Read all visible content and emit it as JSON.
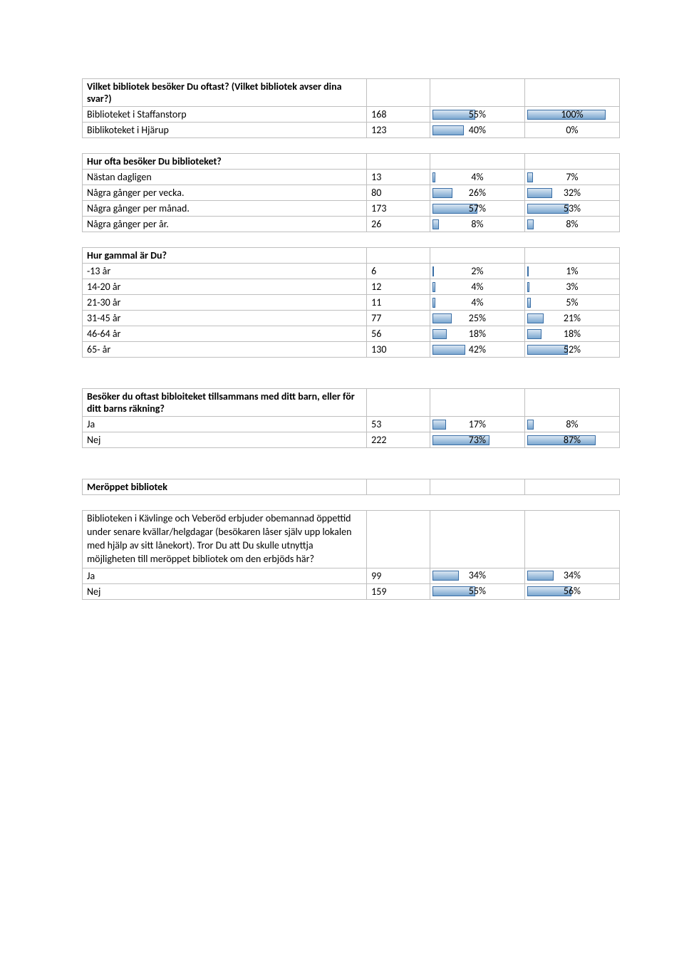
{
  "bar_color_start": "#d9e6f2",
  "bar_color_end": "#7ba7d0",
  "bar_border": "#3a6ea5",
  "grid_color": "#bfbfbf",
  "sections": [
    {
      "header": "Vilket bibliotek besöker Du oftast? (Vilket bibliotek avser dina svar?)",
      "rows": [
        {
          "label": "Biblioteket i Staffanstorp",
          "count": "168",
          "pct1": 55,
          "pct1_txt": "55%",
          "pct2": 100,
          "pct2_txt": "100%"
        },
        {
          "label": "Biblikoteket i Hjärup",
          "count": "123",
          "pct1": 40,
          "pct1_txt": "40%",
          "pct2": 0,
          "pct2_txt": "0%"
        }
      ],
      "gap_before": false
    },
    {
      "header": "Hur ofta besöker Du biblioteket?",
      "rows": [
        {
          "label": "Nästan dagligen",
          "count": "13",
          "pct1": 4,
          "pct1_txt": "4%",
          "pct2": 7,
          "pct2_txt": "7%"
        },
        {
          "label": "Några gånger per vecka.",
          "count": "80",
          "pct1": 26,
          "pct1_txt": "26%",
          "pct2": 32,
          "pct2_txt": "32%"
        },
        {
          "label": "Några gånger per månad.",
          "count": "173",
          "pct1": 57,
          "pct1_txt": "57%",
          "pct2": 53,
          "pct2_txt": "53%"
        },
        {
          "label": "Några gånger per år.",
          "count": "26",
          "pct1": 8,
          "pct1_txt": "8%",
          "pct2": 8,
          "pct2_txt": "8%"
        }
      ],
      "gap_before": true
    },
    {
      "header": "Hur gammal är Du?",
      "rows": [
        {
          "label": "-13 år",
          "count": "6",
          "pct1": 2,
          "pct1_txt": "2%",
          "pct2": 1,
          "pct2_txt": "1%"
        },
        {
          "label": "14-20 år",
          "count": "12",
          "pct1": 4,
          "pct1_txt": "4%",
          "pct2": 3,
          "pct2_txt": "3%"
        },
        {
          "label": "21-30 år",
          "count": "11",
          "pct1": 4,
          "pct1_txt": "4%",
          "pct2": 5,
          "pct2_txt": "5%"
        },
        {
          "label": "31-45 år",
          "count": "77",
          "pct1": 25,
          "pct1_txt": "25%",
          "pct2": 21,
          "pct2_txt": "21%"
        },
        {
          "label": "46-64 år",
          "count": "56",
          "pct1": 18,
          "pct1_txt": "18%",
          "pct2": 18,
          "pct2_txt": "18%"
        },
        {
          "label": "65- år",
          "count": "130",
          "pct1": 42,
          "pct1_txt": "42%",
          "pct2": 52,
          "pct2_txt": "52%"
        }
      ],
      "gap_before": true
    },
    {
      "header": "Besöker du oftast bibloiteket tillsammans med ditt barn, eller för ditt barns räkning?",
      "rows": [
        {
          "label": "Ja",
          "count": "53",
          "pct1": 17,
          "pct1_txt": "17%",
          "pct2": 8,
          "pct2_txt": "8%"
        },
        {
          "label": "Nej",
          "count": "222",
          "pct1": 73,
          "pct1_txt": "73%",
          "pct2": 87,
          "pct2_txt": "87%"
        }
      ],
      "gap_before": true,
      "big_gap": true
    },
    {
      "header": "Meröppet bibliotek",
      "rows": [],
      "gap_before": true,
      "big_gap": true,
      "subtext": "Biblioteken i Kävlinge och Veberöd erbjuder obemannad öppettid under senare kvällar/helgdagar (besökaren låser själv upp lokalen med hjälp av sitt lånekort). Tror Du att Du skulle utnyttja möjligheten till meröppet bibliotek om den erbjöds här?",
      "subrows": [
        {
          "label": "Ja",
          "count": "99",
          "pct1": 34,
          "pct1_txt": "34%",
          "pct2": 34,
          "pct2_txt": "34%"
        },
        {
          "label": "Nej",
          "count": "159",
          "pct1": 55,
          "pct1_txt": "55%",
          "pct2": 56,
          "pct2_txt": "56%"
        }
      ]
    }
  ]
}
